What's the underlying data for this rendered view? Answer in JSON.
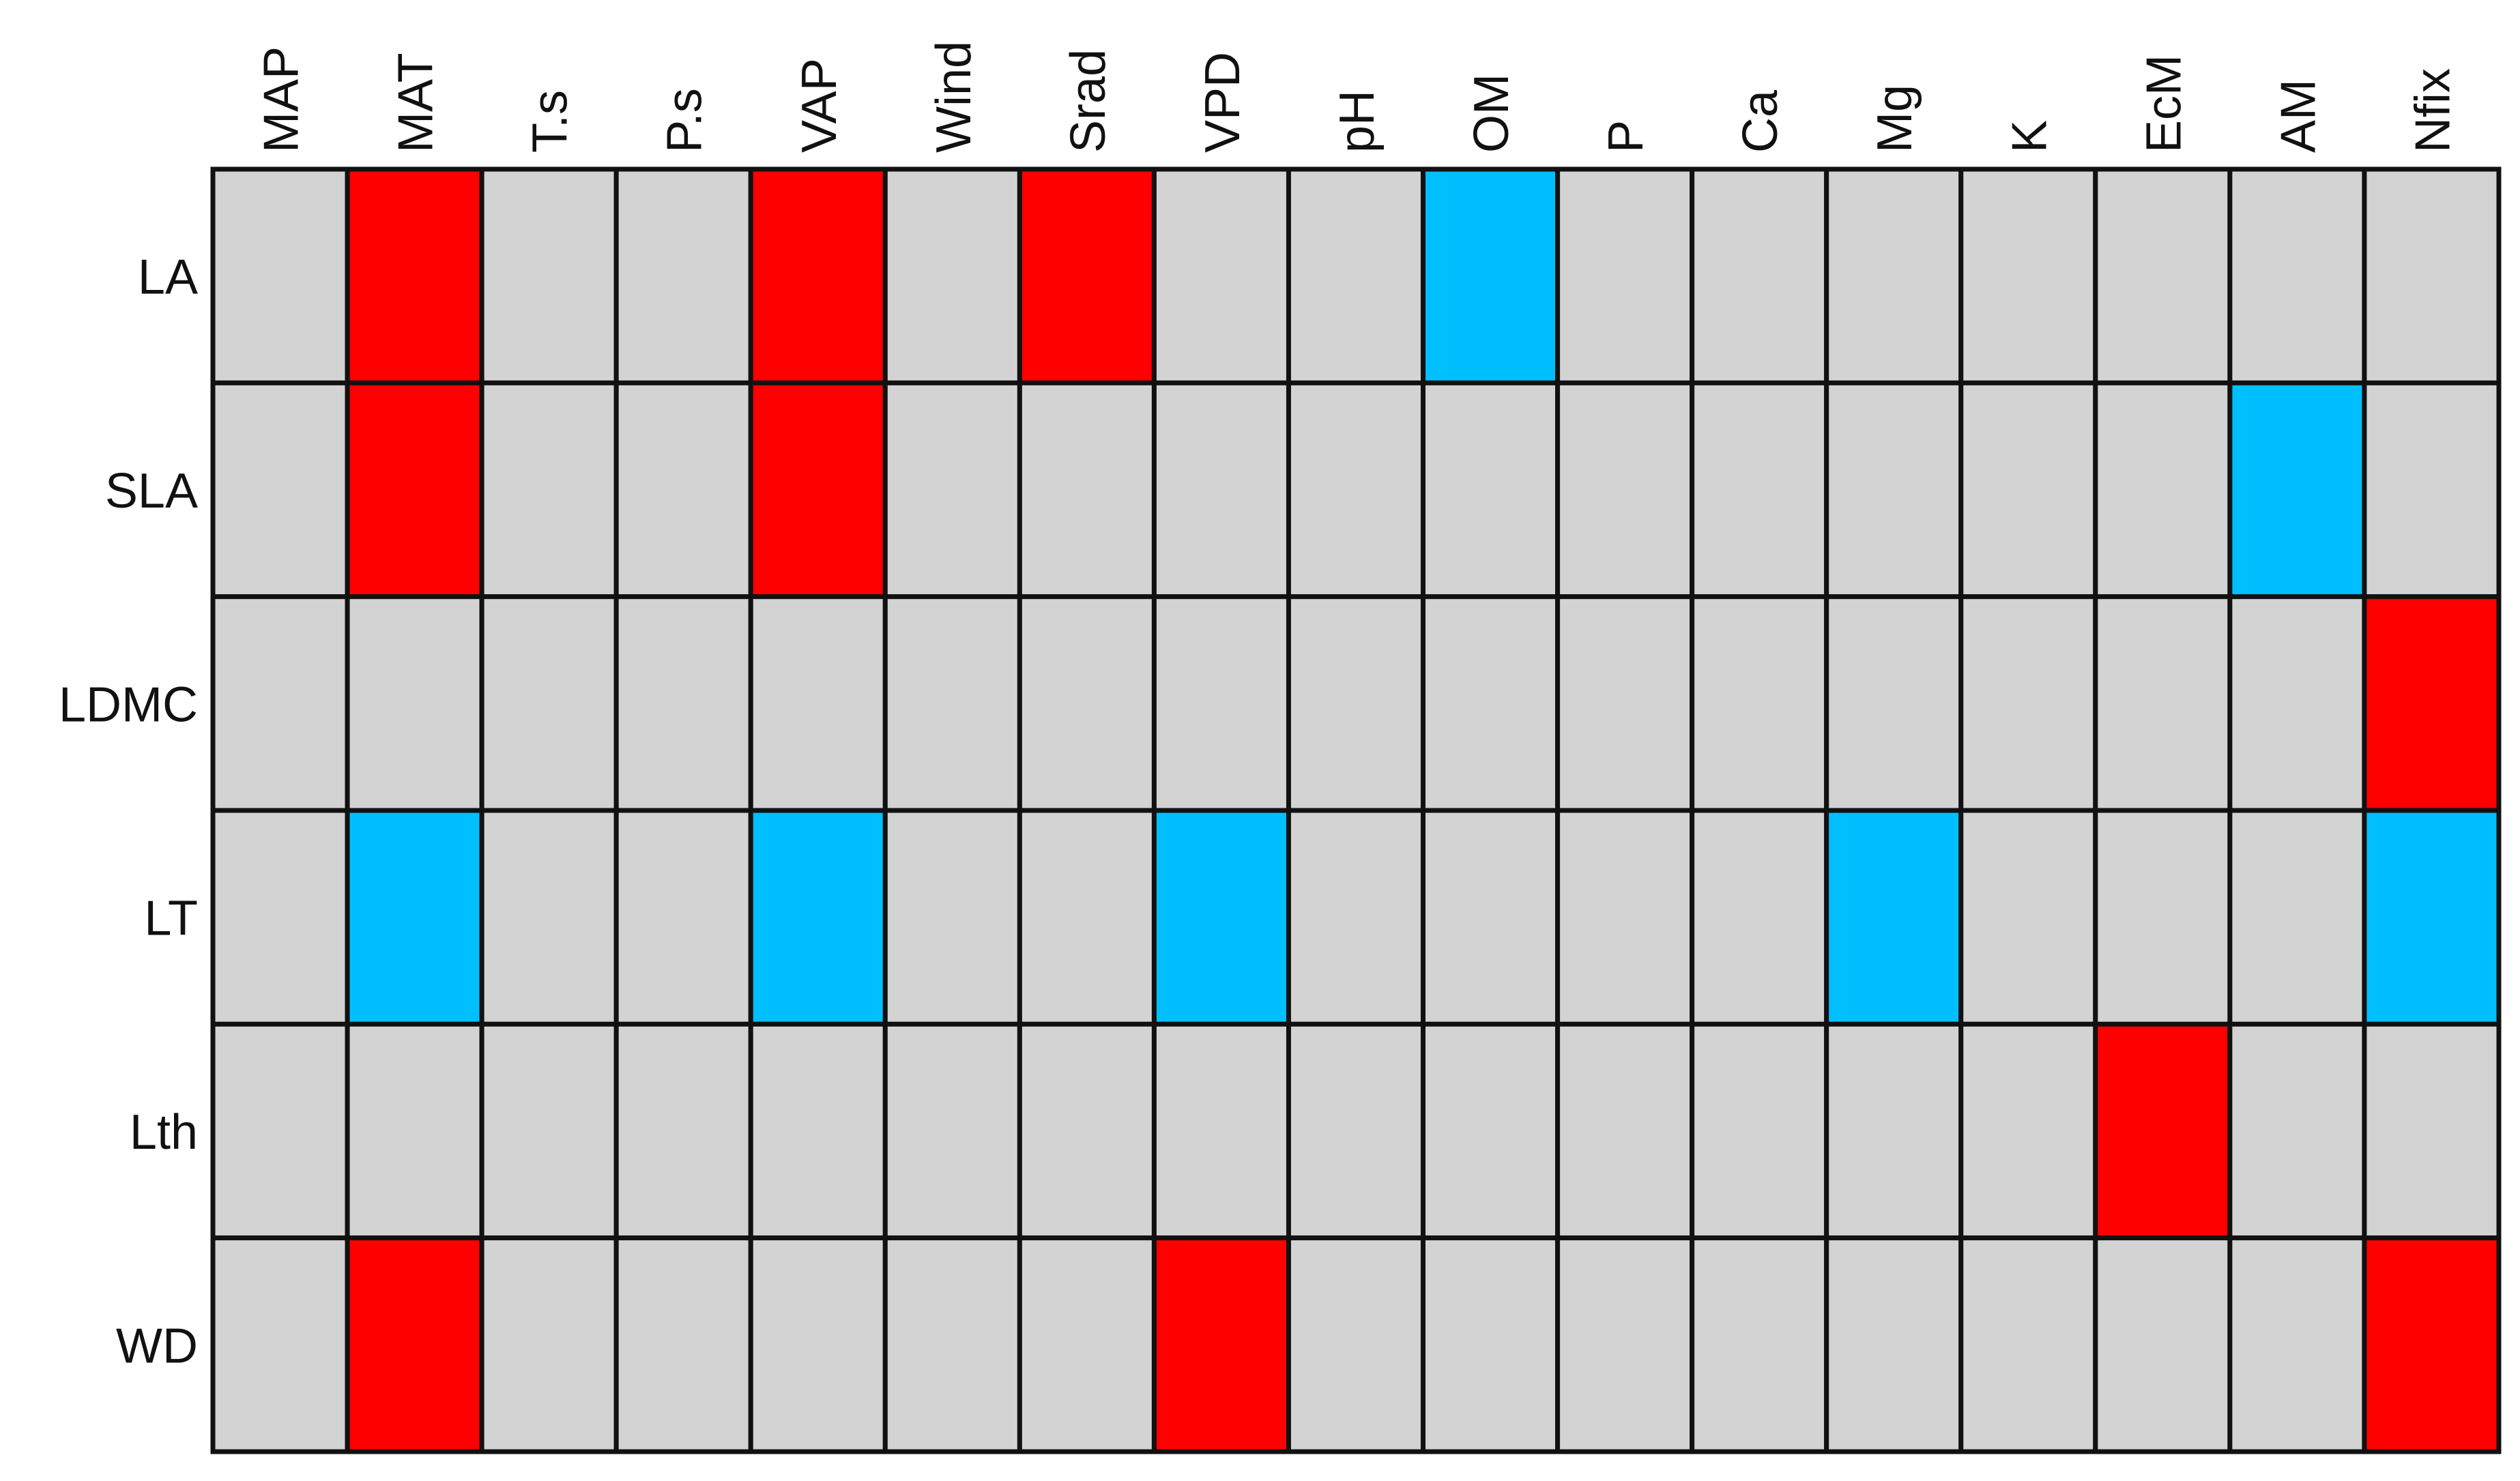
{
  "chart_data": {
    "type": "heatmap",
    "columns": [
      "MAP",
      "MAT",
      "T.s",
      "P.s",
      "VAP",
      "Wind",
      "Srad",
      "VPD",
      "pH",
      "OM",
      "P",
      "Ca",
      "Mg",
      "K",
      "EcM",
      "AM",
      "Nfix"
    ],
    "rows": [
      "LA",
      "SLA",
      "LDMC",
      "LT",
      "Lth",
      "WD"
    ],
    "values": [
      [
        0,
        1,
        0,
        0,
        1,
        0,
        1,
        0,
        0,
        -1,
        0,
        0,
        0,
        0,
        0,
        0,
        0
      ],
      [
        0,
        1,
        0,
        0,
        1,
        0,
        0,
        0,
        0,
        0,
        0,
        0,
        0,
        0,
        0,
        -1,
        0
      ],
      [
        0,
        0,
        0,
        0,
        0,
        0,
        0,
        0,
        0,
        0,
        0,
        0,
        0,
        0,
        0,
        0,
        1
      ],
      [
        0,
        -1,
        0,
        0,
        -1,
        0,
        0,
        -1,
        0,
        0,
        0,
        0,
        -1,
        0,
        0,
        0,
        -1
      ],
      [
        0,
        0,
        0,
        0,
        0,
        0,
        0,
        0,
        0,
        0,
        0,
        0,
        0,
        0,
        1,
        0,
        0
      ],
      [
        0,
        1,
        0,
        0,
        0,
        0,
        0,
        1,
        0,
        0,
        0,
        0,
        0,
        0,
        0,
        0,
        1
      ]
    ],
    "color_scale": {
      "-1": "#00bfff",
      "0": "#d3d3d3",
      "1": "#ff0000"
    }
  }
}
